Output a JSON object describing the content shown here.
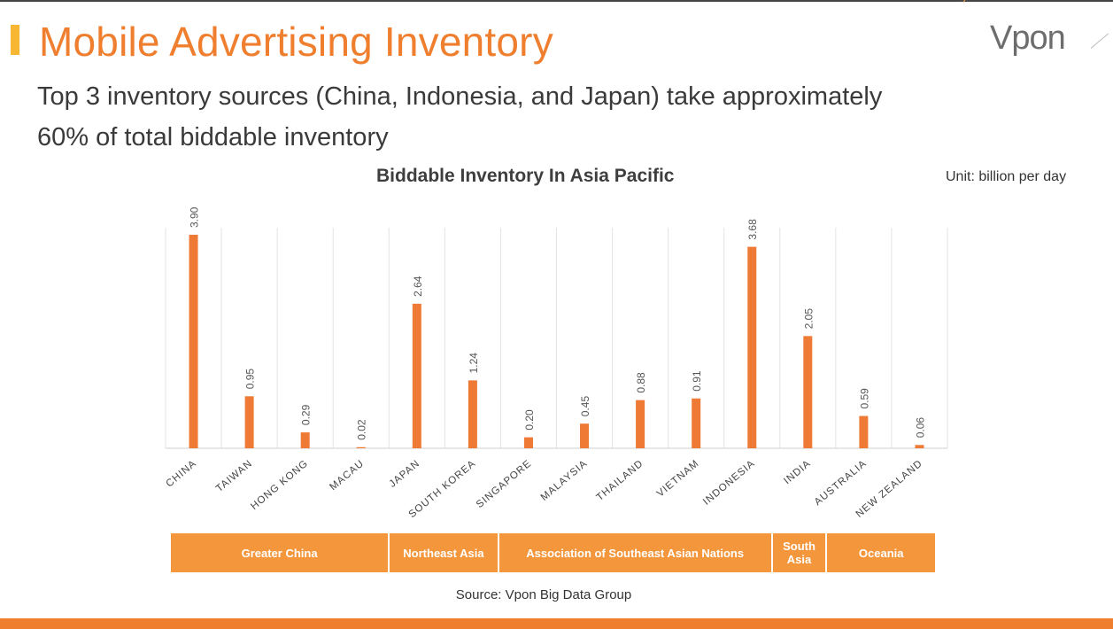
{
  "slide": {
    "title": "Mobile Advertising Inventory",
    "subtitle_line1": "Top 3 inventory sources (China, Indonesia, and Japan) take approximately",
    "subtitle_line2": "60% of total biddable inventory",
    "logo_text": "Vpon",
    "source": "Source: Vpon Big Data Group",
    "colors": {
      "accent": "#ef7f2f",
      "bar": "#ee7a35",
      "region": "#f4963c",
      "title_marker": "#f7b733"
    }
  },
  "chart_data": {
    "type": "bar",
    "title": "Biddable Inventory In Asia Pacific",
    "unit": "Unit:  billion per day",
    "categories": [
      "CHINA",
      "TAIWAN",
      "HONG KONG",
      "MACAU",
      "JAPAN",
      "SOUTH KOREA",
      "SINGAPORE",
      "MALAYSIA",
      "THAILAND",
      "VIETNAM",
      "INDONESIA",
      "INDIA",
      "AUSTRALIA",
      "NEW ZEALAND"
    ],
    "values": [
      3.9,
      0.95,
      0.29,
      0.02,
      2.64,
      1.24,
      0.2,
      0.45,
      0.88,
      0.91,
      3.68,
      2.05,
      0.59,
      0.06
    ],
    "value_labels": [
      "3.90",
      "0.95",
      "0.29",
      "0.02",
      "2.64",
      "1.24",
      "0.20",
      "0.45",
      "0.88",
      "0.91",
      "3.68",
      "2.05",
      "0.59",
      "0.06"
    ],
    "ylim": [
      0,
      3.9
    ],
    "grid": "vertical",
    "regions": [
      {
        "label": "Greater China",
        "categories": 4
      },
      {
        "label": "Northeast Asia",
        "categories": 2
      },
      {
        "label": "Association of Southeast Asian Nations",
        "categories": 5
      },
      {
        "label": "South Asia",
        "categories": 1
      },
      {
        "label": "Oceania",
        "categories": 2
      }
    ]
  }
}
